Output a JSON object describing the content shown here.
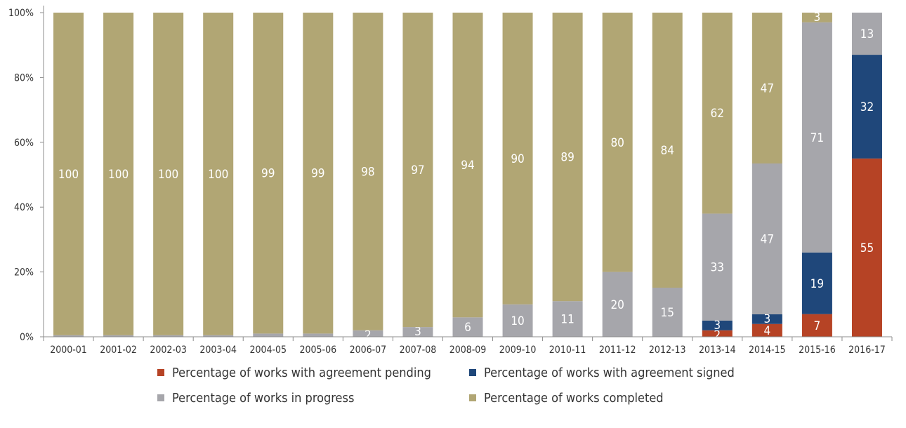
{
  "chart_data": {
    "type": "bar",
    "stacked": true,
    "percent": true,
    "categories": [
      "2000-01",
      "2001-02",
      "2002-03",
      "2003-04",
      "2004-05",
      "2005-06",
      "2006-07",
      "2007-08",
      "2008-09",
      "2009-10",
      "2010-11",
      "2011-12",
      "2012-13",
      "2013-14",
      "2014-15",
      "2015-16",
      "2016-17"
    ],
    "series": [
      {
        "name": "Percentage of works with agreement pending",
        "color": "#b64325",
        "values": [
          0,
          0,
          0,
          0,
          0,
          0,
          0,
          0,
          0,
          0,
          0,
          0,
          0,
          2,
          4,
          7,
          55
        ],
        "labels": [
          "",
          "",
          "",
          "",
          "",
          "",
          "",
          "",
          "",
          "",
          "",
          "",
          "",
          "2",
          "4",
          "7",
          "55"
        ]
      },
      {
        "name": "Percentage of works with agreement signed",
        "color": "#1f477a",
        "values": [
          0,
          0,
          0,
          0,
          0,
          0,
          0,
          0,
          0,
          0,
          0,
          0,
          0,
          3,
          3,
          19,
          32
        ],
        "labels": [
          "",
          "",
          "",
          "",
          "",
          "",
          "",
          "",
          "",
          "",
          "",
          "",
          "",
          "3",
          "3",
          "19",
          "32"
        ]
      },
      {
        "name": "Percentage of works in progress",
        "color": "#a6a6ab",
        "values": [
          0.5,
          0.5,
          0.5,
          0.5,
          1,
          1,
          2,
          3,
          6,
          10,
          11,
          20,
          15,
          33,
          47,
          71,
          13
        ],
        "labels": [
          "",
          "",
          "",
          "",
          "",
          "",
          "2",
          "3",
          "6",
          "10",
          "11",
          "20",
          "15",
          "33",
          "47",
          "71",
          "13"
        ]
      },
      {
        "name": "Percentage of works completed",
        "color": "#b1a674",
        "values": [
          100,
          100,
          100,
          100,
          99,
          99,
          98,
          97,
          94,
          90,
          89,
          80,
          84,
          62,
          47,
          3,
          0
        ],
        "labels": [
          "100",
          "100",
          "100",
          "100",
          "99",
          "99",
          "98",
          "97",
          "94",
          "90",
          "89",
          "80",
          "84",
          "62",
          "47",
          "3",
          ""
        ]
      }
    ],
    "yticks": [
      "0%",
      "20%",
      "40%",
      "60%",
      "80%",
      "100%"
    ],
    "ylim": [
      0,
      100
    ],
    "grid": false,
    "legend_position": "bottom"
  },
  "legend": {
    "items": [
      "Percentage of works with agreement pending",
      "Percentage of works with agreement signed",
      "Percentage of works in progress",
      "Percentage of works completed"
    ]
  }
}
